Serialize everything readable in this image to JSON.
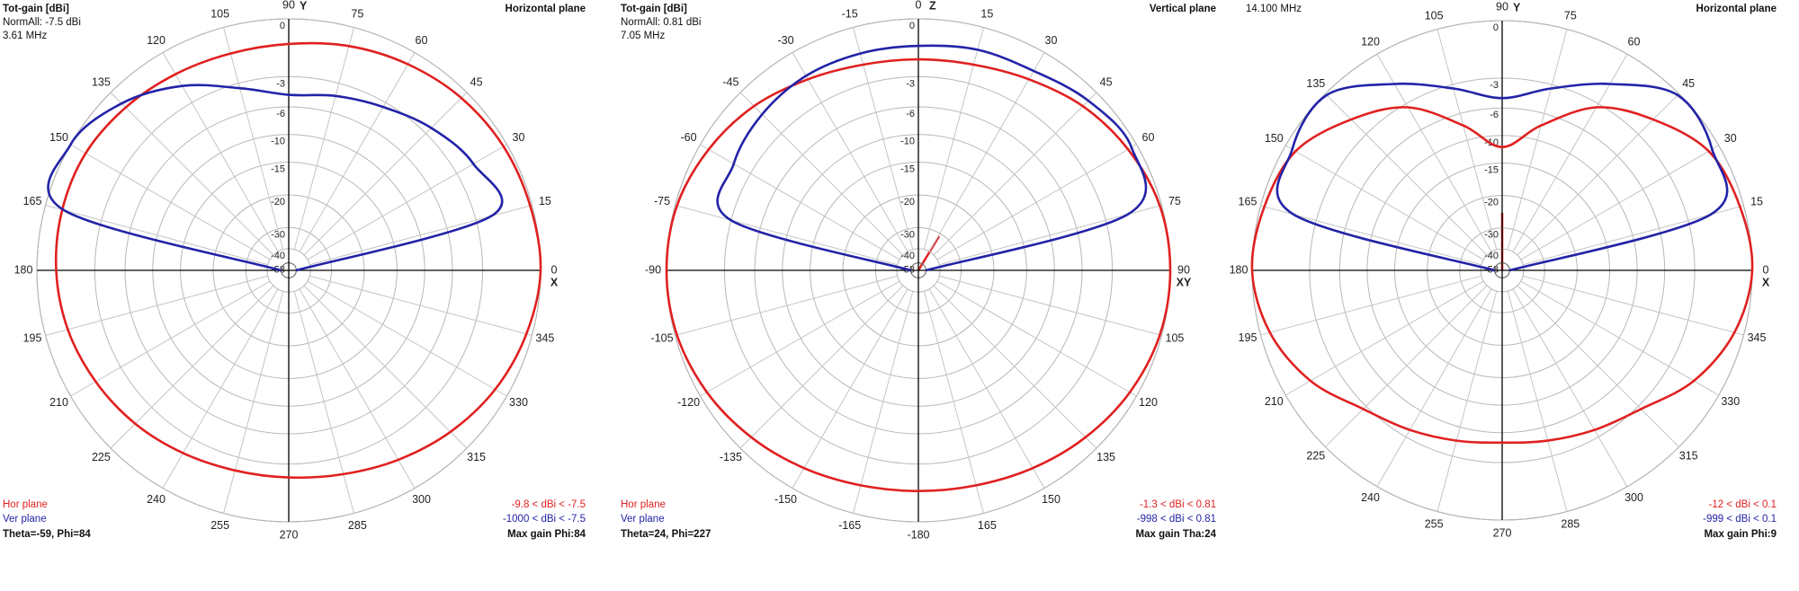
{
  "chart_data": [
    {
      "type": "polar",
      "info": [
        "Tot-gain [dBi]",
        "NormAll: -7.5 dBi",
        "3.61 MHz"
      ],
      "title": "Horizontal plane",
      "zero": "right",
      "clockwise": false,
      "x_label": "X",
      "y_label": "Y",
      "x": [
        0,
        15,
        30,
        45,
        60,
        75,
        90,
        105,
        120,
        135,
        150,
        165,
        180,
        195,
        210,
        225,
        240,
        255,
        270,
        285,
        300,
        315,
        330,
        345
      ],
      "xticks": [
        0,
        15,
        30,
        45,
        60,
        75,
        90,
        105,
        120,
        135,
        150,
        165,
        180,
        195,
        210,
        225,
        240,
        255,
        270,
        285,
        300,
        315,
        330,
        345
      ],
      "ylim": [
        -58,
        0
      ],
      "yticks": [
        0,
        -3,
        -6,
        -10,
        -15,
        -20,
        -30,
        -40,
        -58
      ],
      "series": [
        {
          "name": "Hor plane",
          "color": "#e02020",
          "range_label": "-9.8 < dBi < -7.5",
          "values": [
            0,
            -0.1,
            -0.2,
            -0.4,
            -0.7,
            -1.0,
            -1.3,
            -1.4,
            -1.3,
            -1.1,
            -0.9,
            -0.9,
            -1.0,
            -1.2,
            -1.5,
            -1.8,
            -2.1,
            -2.3,
            -2.3,
            -2.1,
            -1.7,
            -1.2,
            -0.7,
            -0.3
          ]
        },
        {
          "name": "Ver plane",
          "color": "#2323a8",
          "range_label": "-1000 < dBi < -7.5",
          "values": [
            -58,
            -2.2,
            -2.0,
            -2.6,
            -3.5,
            -4.3,
            -4.8,
            -3.5,
            -2.0,
            -0.8,
            0,
            -1.0,
            -58,
            null,
            null,
            null,
            null,
            null,
            null,
            null,
            null,
            null,
            null,
            null
          ]
        }
      ],
      "cursor": "Theta=-59, Phi=84",
      "footer": "Max gain Phi:84"
    },
    {
      "type": "polar",
      "info": [
        "Tot-gain [dBi]",
        "NormAll: 0.81 dBi",
        "7.05 MHz"
      ],
      "title": "Vertical plane",
      "zero": "top",
      "clockwise": true,
      "x_label": "XY",
      "y_label": "Z",
      "x": [
        -180,
        -165,
        -150,
        -135,
        -120,
        -105,
        -90,
        -75,
        -60,
        -45,
        -30,
        -15,
        0,
        15,
        30,
        45,
        60,
        75,
        90,
        105,
        120,
        135,
        150,
        165
      ],
      "xticks": [
        -180,
        -165,
        -150,
        -135,
        -120,
        -105,
        -90,
        -75,
        -60,
        -45,
        -30,
        -15,
        0,
        15,
        30,
        45,
        60,
        75,
        90,
        105,
        120,
        135,
        150,
        165
      ],
      "ylim": [
        -58,
        0
      ],
      "yticks": [
        0,
        -3,
        -6,
        -10,
        -15,
        -20,
        -30,
        -40,
        -58
      ],
      "series": [
        {
          "name": "Hor plane",
          "color": "#e02020",
          "range_label": "-1.3 < dBi < 0.81",
          "values": [
            -1.6,
            -1.5,
            -1.2,
            -0.8,
            -0.4,
            -0.1,
            0,
            -0.1,
            -0.5,
            -1.0,
            -1.6,
            -2.0,
            -2.1,
            -2.0,
            -1.6,
            -1.0,
            -0.5,
            -0.1,
            0,
            -0.1,
            -0.4,
            -0.8,
            -1.2,
            -1.5
          ]
        },
        {
          "name": "Ver plane",
          "color": "#2323a8",
          "range_label": "-998 < dBi < 0.81",
          "values": [
            null,
            null,
            null,
            null,
            null,
            null,
            -58,
            -3.0,
            -2.0,
            -1.6,
            -1.4,
            -1.4,
            -1.4,
            -1.2,
            -1.1,
            -0.6,
            -0.3,
            -1.8,
            -58,
            null,
            null,
            null,
            null,
            null
          ]
        }
      ],
      "cursor": "Theta=24, Phi=227",
      "footer": "Max gain Tha:24"
    },
    {
      "type": "polar",
      "info": [
        "14.100 MHz"
      ],
      "title": "Horizontal plane",
      "zero": "right",
      "clockwise": false,
      "x_label": "X",
      "y_label": "Y",
      "x": [
        0,
        15,
        30,
        45,
        60,
        75,
        90,
        105,
        120,
        135,
        150,
        165,
        180,
        195,
        210,
        225,
        240,
        255,
        270,
        285,
        300,
        315,
        330,
        345
      ],
      "xticks": [
        0,
        15,
        30,
        45,
        60,
        75,
        90,
        105,
        120,
        135,
        150,
        165,
        180,
        195,
        210,
        225,
        240,
        255,
        270,
        285,
        300,
        315,
        330,
        345
      ],
      "ylim": [
        -58,
        0
      ],
      "yticks": [
        0,
        -3,
        -6,
        -10,
        -15,
        -20,
        -30,
        -40,
        -58
      ],
      "series": [
        {
          "color": "#e02020",
          "range_label": "-12 < dBi < 0.1",
          "values": [
            0,
            -0.2,
            -0.6,
            -1.9,
            -3.4,
            -7.8,
            -12.1,
            -7.8,
            -3.4,
            -1.9,
            -0.6,
            -0.2,
            0,
            -0.5,
            -1.5,
            -2.8,
            -3.8,
            -4.6,
            -5.0,
            -4.6,
            -3.8,
            -2.8,
            -1.5,
            -0.5
          ]
        },
        {
          "color": "#2323a8",
          "range_label": "-999 < dBi < 0.1",
          "values": [
            -58,
            -1.8,
            -0.4,
            -0.1,
            -1.8,
            -3.4,
            -5.0,
            -3.4,
            -1.8,
            -0.1,
            -0.4,
            -1.8,
            -58,
            null,
            null,
            null,
            null,
            null,
            null,
            null,
            null,
            null,
            null,
            null
          ]
        }
      ],
      "footer": "Max gain Phi:9"
    }
  ]
}
